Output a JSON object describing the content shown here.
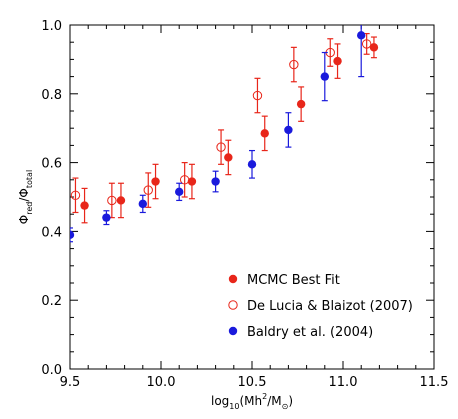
{
  "chart_data": {
    "type": "scatter",
    "title": "",
    "xlabel": {
      "base": "log",
      "base_sub": "10",
      "main": "(Mh",
      "sup": "2",
      "mid": "/M",
      "sun": "⊙",
      "end": ")"
    },
    "ylabel": {
      "phi1": "Φ",
      "sub1": "red",
      "slash": "/",
      "phi2": "Φ",
      "sub2": "total"
    },
    "xlim": [
      9.5,
      11.5
    ],
    "ylim": [
      0.0,
      1.0
    ],
    "xticks": [
      9.5,
      10.0,
      10.5,
      11.0,
      11.5
    ],
    "xtick_labels": [
      "9.5",
      "10.0",
      "10.5",
      "11.0",
      "11.5"
    ],
    "yticks": [
      0.0,
      0.2,
      0.4,
      0.6,
      0.8,
      1.0
    ],
    "ytick_labels": [
      "0.0",
      "0.2",
      "0.4",
      "0.6",
      "0.8",
      "1.0"
    ],
    "grid": false,
    "legend_position": "bottom-right",
    "series": [
      {
        "name": "MCMC Best Fit",
        "color": "#e8261a",
        "marker": "filled-circle",
        "x": [
          9.58,
          9.78,
          9.97,
          10.17,
          10.37,
          10.57,
          10.77,
          10.97,
          11.17
        ],
        "y": [
          0.475,
          0.49,
          0.545,
          0.545,
          0.615,
          0.685,
          0.77,
          0.895,
          0.935
        ],
        "err": [
          0.05,
          0.05,
          0.05,
          0.05,
          0.05,
          0.05,
          0.05,
          0.05,
          0.03
        ]
      },
      {
        "name": "De Lucia & Blaizot (2007)",
        "color": "#e8261a",
        "marker": "open-circle",
        "x": [
          9.53,
          9.73,
          9.93,
          10.13,
          10.33,
          10.53,
          10.73,
          10.93,
          11.13
        ],
        "y": [
          0.505,
          0.49,
          0.52,
          0.55,
          0.645,
          0.795,
          0.885,
          0.92,
          0.945
        ],
        "err": [
          0.05,
          0.05,
          0.05,
          0.05,
          0.05,
          0.05,
          0.05,
          0.04,
          0.03
        ]
      },
      {
        "name": "Baldry et al. (2004)",
        "color": "#1a1adc",
        "marker": "filled-circle",
        "x": [
          9.5,
          9.7,
          9.9,
          10.1,
          10.3,
          10.5,
          10.7,
          10.9,
          11.1
        ],
        "y": [
          0.39,
          0.44,
          0.48,
          0.515,
          0.545,
          0.595,
          0.695,
          0.85,
          0.97
        ],
        "err": [
          0.02,
          0.02,
          0.025,
          0.025,
          0.03,
          0.04,
          0.05,
          0.07,
          0.12
        ]
      }
    ]
  }
}
